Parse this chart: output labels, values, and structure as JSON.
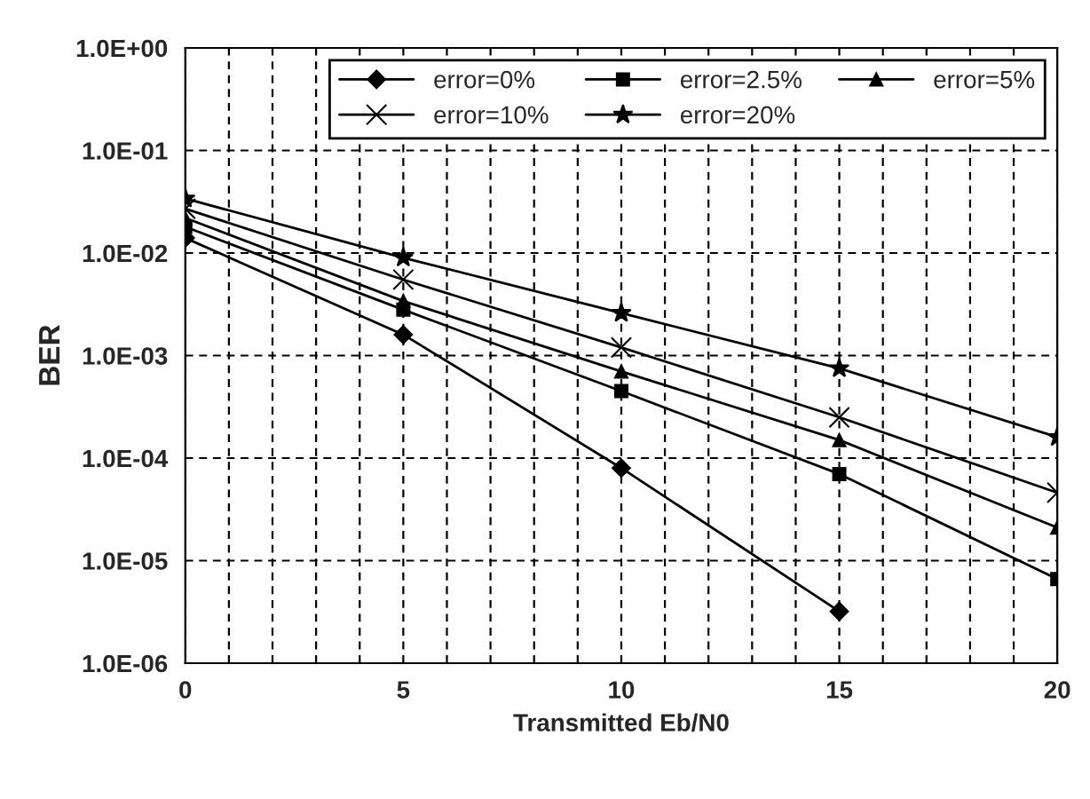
{
  "chart_data": {
    "type": "line",
    "xlabel": "Transmitted Eb/N0",
    "ylabel": "BER",
    "x": [
      0,
      5,
      10,
      15,
      20
    ],
    "series": [
      {
        "name": "error=0%",
        "color": "#000000",
        "marker": "diamond",
        "values": [
          0.014,
          0.0016,
          8e-05,
          3.2e-06,
          null
        ]
      },
      {
        "name": "error=2.5%",
        "color": "#000000",
        "marker": "square",
        "values": [
          0.018,
          0.0028,
          0.00045,
          7e-05,
          6.6e-06
        ]
      },
      {
        "name": "error=5%",
        "color": "#000000",
        "marker": "triangle",
        "values": [
          0.022,
          0.0034,
          0.0007,
          0.00015,
          2.1e-05
        ]
      },
      {
        "name": "error=10%",
        "color": "#000000",
        "marker": "cross",
        "values": [
          0.027,
          0.0055,
          0.0012,
          0.00025,
          4.6e-05
        ]
      },
      {
        "name": "error=20%",
        "color": "#000000",
        "marker": "star",
        "values": [
          0.034,
          0.009,
          0.0026,
          0.00075,
          0.00016
        ]
      }
    ],
    "log": "y",
    "xlim": [
      0,
      20
    ],
    "ylim": [
      1e-06,
      1
    ],
    "xticks": [
      0,
      {
        "value": 1,
        "label": null
      },
      {
        "value": 2,
        "label": null
      },
      {
        "value": 3,
        "label": null
      },
      {
        "value": 4,
        "label": null
      },
      5,
      {
        "value": 6,
        "label": null
      },
      {
        "value": 7,
        "label": null
      },
      {
        "value": 8,
        "label": null
      },
      {
        "value": 9,
        "label": null
      },
      10,
      {
        "value": 11,
        "label": null
      },
      {
        "value": 12,
        "label": null
      },
      {
        "value": 13,
        "label": null
      },
      {
        "value": 14,
        "label": null
      },
      15,
      {
        "value": 16,
        "label": null
      },
      {
        "value": 17,
        "label": null
      },
      {
        "value": 18,
        "label": null
      },
      {
        "value": 19,
        "label": null
      },
      20
    ],
    "yticks": [
      {
        "value": 1e-06,
        "label": "1.0E-06"
      },
      {
        "value": 1e-05,
        "label": "1.0E-05"
      },
      {
        "value": 0.0001,
        "label": "1.0E-04"
      },
      {
        "value": 0.001,
        "label": "1.0E-03"
      },
      {
        "value": 0.01,
        "label": "1.0E-02"
      },
      {
        "value": 0.1,
        "label": "1.0E-01"
      },
      {
        "value": 1,
        "label": "1.0E+00"
      }
    ],
    "grid": true,
    "legend": "top right",
    "line_style": "solid"
  }
}
